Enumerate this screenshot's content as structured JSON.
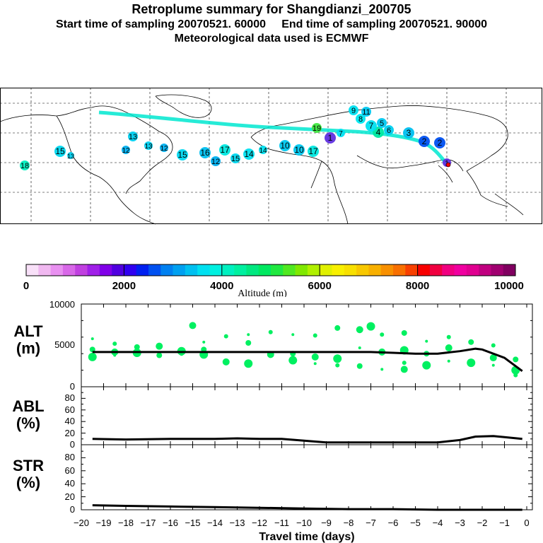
{
  "title": {
    "line1": "Retroplume summary for Shangdianzi_200705",
    "line2": "Start time of sampling 20070521. 60000     End time of sampling 20070521. 90000",
    "line3": "Meteorological data used is ECMWF"
  },
  "colorbar": {
    "label": "Altitude (m)",
    "ticks": [
      "0",
      "2000",
      "4000",
      "6000",
      "8000",
      "10000"
    ],
    "colors": [
      "#f8e0f8",
      "#f0b8f0",
      "#e890f0",
      "#d868e8",
      "#c040e0",
      "#a020e8",
      "#8000e8",
      "#5000e0",
      "#3000f0",
      "#0020f0",
      "#0050f0",
      "#0080f0",
      "#00a0f0",
      "#00c0f0",
      "#00e0f0",
      "#00f0e0",
      "#00f0c0",
      "#00f0a0",
      "#00e880",
      "#00e860",
      "#20e840",
      "#50e820",
      "#80e800",
      "#b0f000",
      "#e0f000",
      "#f8f000",
      "#f8e000",
      "#f8c800",
      "#f8b000",
      "#f89000",
      "#f87000",
      "#f84000",
      "#f80000",
      "#f00040",
      "#f00080",
      "#f000a0",
      "#e00090",
      "#c00080",
      "#a00070",
      "#800060"
    ]
  },
  "map": {
    "markers": [
      {
        "label": "1",
        "color": "#6030e0"
      },
      {
        "label": "2",
        "color": "#0050f0"
      },
      {
        "label": "3",
        "color": "#00c0f0"
      },
      {
        "label": "4",
        "color": "#00e8a0"
      },
      {
        "label": "5",
        "color": "#00c8f0"
      },
      {
        "label": "6",
        "color": "#00d0f0"
      },
      {
        "label": "7",
        "color": "#00e0f0"
      },
      {
        "label": "8",
        "color": "#00e8f0"
      },
      {
        "label": "9",
        "color": "#00e0f0"
      },
      {
        "label": "10",
        "color": "#00c8f0"
      },
      {
        "label": "11",
        "color": "#00c8f0"
      },
      {
        "label": "12",
        "color": "#00b0f0"
      },
      {
        "label": "13",
        "color": "#00d0f0"
      },
      {
        "label": "14",
        "color": "#00e0f0"
      },
      {
        "label": "15",
        "color": "#00d8f0"
      },
      {
        "label": "16",
        "color": "#00c0f0"
      },
      {
        "label": "17",
        "color": "#00e8e0"
      },
      {
        "label": "18",
        "color": "#00f0c0"
      },
      {
        "label": "19",
        "color": "#40e840"
      }
    ]
  },
  "chart_data": {
    "type": "line",
    "xlabel": "Travel time (days)",
    "x_ticks": [
      "−20",
      "−19",
      "−18",
      "−17",
      "−16",
      "−15",
      "−14",
      "−13",
      "−12",
      "−11",
      "−10",
      "−9",
      "−8",
      "−7",
      "−6",
      "−5",
      "−4",
      "−3",
      "−2",
      "−1",
      "0"
    ],
    "xlim": [
      -20,
      0
    ],
    "panels": [
      {
        "name": "ALT",
        "label_line1": "ALT",
        "label_line2": "(m)",
        "ylim": [
          0,
          10000
        ],
        "y_ticks": [
          "0",
          "5000",
          "10000"
        ],
        "series": [
          {
            "name": "mean altitude",
            "x": [
              -19.5,
              -19,
              -18,
              -17,
              -16,
              -15,
              -14,
              -13,
              -12,
              -11,
              -10,
              -9,
              -8,
              -7,
              -6,
              -5,
              -4,
              -3,
              -2.3,
              -2,
              -1,
              -0.2
            ],
            "values": [
              4200,
              4200,
              4200,
              4200,
              4200,
              4200,
              4200,
              4200,
              4200,
              4200,
              4200,
              4200,
              4200,
              4200,
              4100,
              4000,
              4000,
              4300,
              4600,
              4500,
              3500,
              1900
            ]
          }
        ],
        "scatter": {
          "name": "cluster altitude",
          "x": [
            -19.5,
            -19.5,
            -19.5,
            -18.5,
            -18.5,
            -18.5,
            -17.5,
            -17.5,
            -17.5,
            -16.5,
            -16.5,
            -16.5,
            -15.5,
            -15.5,
            -15,
            -14.5,
            -14.5,
            -14.5,
            -13.5,
            -13.5,
            -12.5,
            -12.5,
            -12.5,
            -11.5,
            -11.5,
            -10.5,
            -10.5,
            -10.5,
            -9.5,
            -9.5,
            -9.5,
            -8.5,
            -8.5,
            -8.5,
            -7.5,
            -7.5,
            -7.5,
            -7,
            -6.5,
            -6.5,
            -6.5,
            -5.5,
            -5.5,
            -5.5,
            -5.5,
            -4.5,
            -4.5,
            -4.5,
            -3.5,
            -3.5,
            -3.5,
            -2.5,
            -2.5,
            -1.5,
            -1.5,
            -1.5,
            -0.5,
            -0.5,
            -0.5
          ],
          "values": [
            5800,
            4500,
            3600,
            5200,
            4200,
            3800,
            4800,
            4100,
            3900,
            4900,
            4000,
            3800,
            4300,
            4000,
            7400,
            5400,
            4500,
            3900,
            6100,
            3000,
            6300,
            5300,
            2800,
            6600,
            3900,
            6300,
            4000,
            3200,
            6200,
            3600,
            2800,
            7100,
            3400,
            2600,
            6900,
            4700,
            2500,
            7300,
            6300,
            4200,
            2100,
            6500,
            4400,
            2900,
            2100,
            5500,
            4000,
            2600,
            6000,
            4700,
            3100,
            5400,
            2900,
            5000,
            3500,
            2600,
            3300,
            2000,
            1400
          ],
          "color": "#00f060"
        }
      },
      {
        "name": "ABL",
        "label_line1": "ABL",
        "label_line2": "(%)",
        "ylim": [
          0,
          100
        ],
        "y_ticks": [
          "0",
          "20",
          "40",
          "60",
          "80"
        ],
        "series": [
          {
            "name": "ABL fraction",
            "x": [
              -19.5,
              -18,
              -16,
              -14,
              -13,
              -12,
              -11,
              -10,
              -9,
              -8,
              -7,
              -6,
              -5,
              -4,
              -3,
              -2.3,
              -1.5,
              -1,
              -0.2
            ],
            "values": [
              10,
              9,
              10,
              10,
              11,
              10,
              10,
              7,
              4,
              4,
              4,
              4,
              4,
              4,
              8,
              14,
              15,
              13,
              10
            ]
          }
        ]
      },
      {
        "name": "STR",
        "label_line1": "STR",
        "label_line2": "(%)",
        "ylim": [
          0,
          100
        ],
        "y_ticks": [
          "0",
          "20",
          "40",
          "60",
          "80"
        ],
        "series": [
          {
            "name": "STR fraction",
            "x": [
              -19.5,
              -18,
              -16,
              -14,
              -12,
              -10,
              -8,
              -6,
              -4,
              -2,
              -0.2
            ],
            "values": [
              7,
              6,
              5,
              4,
              3,
              2,
              1,
              1,
              0,
              0,
              0
            ]
          }
        ]
      }
    ]
  }
}
